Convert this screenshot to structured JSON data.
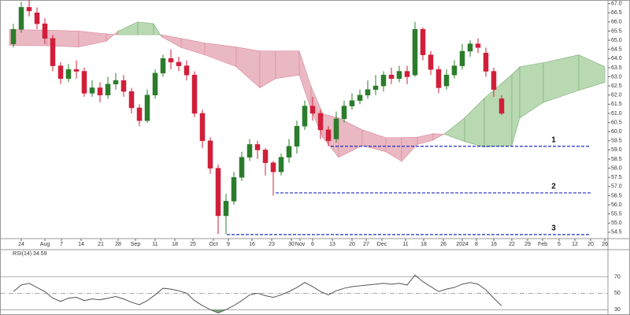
{
  "chart_data": {
    "type": "candlestick",
    "x": [
      0,
      1,
      2,
      3,
      4,
      5,
      6,
      7,
      8,
      9,
      10,
      11,
      12,
      13,
      14,
      15,
      16,
      17,
      18,
      19,
      20,
      21,
      22,
      23,
      24,
      25,
      26,
      27,
      28,
      29,
      30,
      31,
      32,
      33,
      34,
      35,
      36,
      37,
      38,
      39,
      40,
      41,
      42,
      43,
      44,
      45,
      46,
      47,
      48,
      49,
      50,
      51,
      52,
      53,
      54,
      55,
      56,
      57,
      58,
      59,
      60,
      61,
      62
    ],
    "open": [
      64.8,
      65.6,
      66.8,
      66.5,
      65.9,
      65.1,
      63.6,
      62.9,
      63.4,
      63.3,
      62.1,
      62.4,
      62.0,
      62.6,
      62.8,
      62.2,
      61.3,
      60.6,
      62.0,
      63.2,
      64.0,
      63.8,
      63.6,
      63.1,
      61.0,
      59.5,
      58.0,
      55.4,
      56.2,
      57.5,
      58.6,
      59.3,
      59.0,
      58.3,
      57.8,
      58.6,
      59.2,
      60.3,
      61.4,
      61.0,
      60.1,
      59.6,
      60.7,
      61.4,
      61.7,
      62.0,
      62.3,
      62.5,
      63.1,
      62.9,
      63.3,
      63.1,
      65.6,
      64.2,
      63.4,
      62.5,
      63.1,
      63.6,
      64.4,
      64.8,
      64.3,
      63.3,
      61.8
    ],
    "high": [
      65.9,
      67.1,
      67.2,
      66.8,
      66.2,
      65.3,
      63.8,
      63.7,
      63.9,
      63.5,
      62.8,
      62.7,
      63.0,
      63.2,
      63.1,
      62.4,
      61.5,
      62.3,
      63.4,
      64.2,
      64.5,
      64.1,
      63.9,
      63.3,
      61.2,
      59.7,
      58.2,
      56.6,
      57.8,
      58.9,
      59.6,
      59.5,
      59.1,
      58.4,
      58.8,
      59.6,
      60.6,
      61.7,
      61.9,
      61.2,
      60.3,
      61.1,
      61.7,
      62.1,
      62.3,
      62.8,
      63.1,
      63.3,
      63.5,
      63.6,
      63.6,
      66.0,
      65.7,
      64.4,
      63.6,
      63.4,
      63.9,
      64.8,
      65.0,
      65.1,
      64.6,
      63.5,
      62.0
    ],
    "low": [
      64.6,
      65.4,
      66.3,
      65.6,
      64.8,
      63.3,
      62.6,
      62.7,
      62.9,
      61.9,
      61.9,
      61.6,
      61.8,
      62.3,
      61.9,
      61.0,
      60.3,
      60.5,
      61.8,
      63.0,
      63.4,
      63.3,
      62.8,
      60.8,
      59.1,
      57.7,
      54.4,
      54.4,
      56.0,
      57.3,
      58.4,
      58.5,
      57.6,
      56.5,
      57.6,
      58.3,
      58.8,
      60.1,
      60.6,
      59.6,
      59.2,
      59.4,
      60.5,
      61.2,
      61.5,
      61.8,
      62.0,
      62.2,
      62.6,
      62.7,
      62.6,
      63.0,
      63.9,
      63.1,
      62.1,
      62.3,
      62.9,
      63.4,
      64.1,
      64.3,
      63.0,
      61.9,
      60.9
    ],
    "close": [
      65.6,
      66.8,
      66.6,
      65.9,
      65.1,
      63.6,
      62.9,
      63.4,
      63.3,
      62.1,
      62.4,
      62.0,
      62.6,
      62.8,
      62.2,
      61.3,
      60.6,
      62.0,
      63.2,
      64.0,
      63.8,
      63.6,
      63.1,
      61.0,
      59.5,
      58.0,
      55.4,
      56.2,
      57.5,
      58.6,
      59.3,
      59.0,
      58.3,
      57.8,
      58.6,
      59.2,
      60.3,
      61.4,
      61.0,
      60.1,
      59.5,
      60.7,
      61.4,
      61.7,
      62.0,
      62.3,
      62.5,
      63.1,
      62.9,
      63.3,
      63.0,
      65.6,
      64.2,
      63.4,
      62.4,
      63.1,
      63.6,
      64.4,
      64.8,
      64.6,
      63.3,
      62.3,
      61.0
    ],
    "up_color": "#2b7d2b",
    "down_color": "#d11f3a",
    "xlim": [
      -0.5,
      75.5
    ],
    "xticks": [
      {
        "value": 1.0,
        "label": "24"
      },
      {
        "value": 4.0,
        "label": "Aug"
      },
      {
        "value": 6.1,
        "label": "7"
      },
      {
        "value": 8.6,
        "label": "14"
      },
      {
        "value": 11.1,
        "label": "21"
      },
      {
        "value": 13.3,
        "label": "28"
      },
      {
        "value": 15.5,
        "label": "Sep"
      },
      {
        "value": 18.0,
        "label": "11"
      },
      {
        "value": 20.5,
        "label": "18"
      },
      {
        "value": 22.8,
        "label": "25"
      },
      {
        "value": 25.4,
        "label": "Oct"
      },
      {
        "value": 27.3,
        "label": "9"
      },
      {
        "value": 30.3,
        "label": "16"
      },
      {
        "value": 32.8,
        "label": "23"
      },
      {
        "value": 35.3,
        "label": "30"
      },
      {
        "value": 36.4,
        "label": "Nov"
      },
      {
        "value": 38.0,
        "label": "6"
      },
      {
        "value": 40.5,
        "label": "13"
      },
      {
        "value": 43.0,
        "label": "20"
      },
      {
        "value": 44.8,
        "label": "27"
      },
      {
        "value": 46.8,
        "label": "Dec"
      },
      {
        "value": 49.8,
        "label": "11"
      },
      {
        "value": 52.1,
        "label": "18"
      },
      {
        "value": 54.6,
        "label": "26"
      },
      {
        "value": 57.0,
        "label": "2024"
      },
      {
        "value": 58.8,
        "label": "8"
      },
      {
        "value": 61.0,
        "label": "16"
      },
      {
        "value": 63.3,
        "label": "22"
      },
      {
        "value": 65.3,
        "label": "29"
      },
      {
        "value": 67.2,
        "label": "Feb"
      },
      {
        "value": 69.3,
        "label": "5"
      },
      {
        "value": 71.3,
        "label": "12"
      },
      {
        "value": 73.3,
        "label": "20"
      },
      {
        "value": 75.1,
        "label": "26"
      }
    ],
    "ylim": [
      54.15,
      67.2
    ],
    "yticks": [
      54.5,
      {
        "value": 55,
        "label": "55.0"
      },
      55.5,
      {
        "value": 56,
        "label": "56.0"
      },
      56.5,
      {
        "value": 57,
        "label": "57.0"
      },
      57.5,
      {
        "value": 58,
        "label": "58.0"
      },
      58.5,
      {
        "value": 59,
        "label": "59.0"
      },
      59.5,
      {
        "value": 60,
        "label": "60.0"
      },
      60.5,
      {
        "value": 61,
        "label": "61.0"
      },
      61.5,
      {
        "value": 62,
        "label": "62.0"
      },
      62.5,
      {
        "value": 63,
        "label": "63.0"
      },
      63.5,
      {
        "value": 64,
        "label": "64.0"
      },
      64.5,
      {
        "value": 65,
        "label": "65.0"
      },
      65.5,
      {
        "value": 66,
        "label": "66.0"
      },
      66.5,
      {
        "value": 67,
        "label": "67.0"
      }
    ],
    "cloud": {
      "x": [
        -0.5,
        4.3,
        8.3,
        11.8,
        13.3,
        15.8,
        17.8,
        18.8,
        21.3,
        24.3,
        28.3,
        31.3,
        33.3,
        36.3,
        37.8,
        39.3,
        41.3,
        44.3,
        47.3,
        49.3,
        51.3,
        53.3,
        54.8,
        57.3,
        59.8,
        63.3,
        64.3,
        67.3,
        71.8,
        75.1
      ],
      "span_a": [
        64.72,
        64.7,
        64.63,
        64.95,
        65.5,
        66.0,
        65.9,
        65.2,
        64.6,
        64.2,
        63.55,
        62.4,
        62.9,
        63.1,
        61.2,
        59.67,
        58.6,
        59.24,
        58.9,
        58.38,
        59.3,
        59.54,
        59.9,
        60.75,
        61.83,
        63.12,
        63.55,
        63.77,
        64.2,
        63.55
      ],
      "span_b": [
        65.58,
        65.55,
        65.5,
        65.35,
        65.3,
        65.3,
        65.3,
        65.3,
        65.1,
        64.85,
        64.63,
        64.41,
        64.41,
        64.41,
        62.47,
        60.97,
        60.75,
        60.1,
        59.67,
        59.67,
        59.7,
        59.89,
        59.85,
        59.46,
        59.16,
        59.24,
        60.75,
        61.6,
        62.26,
        62.7
      ],
      "up_color": "#b9d9b3",
      "down_color": "#eab8c3",
      "up_edge": "#7cae74",
      "down_edge": "#d9869a"
    },
    "levels": [
      {
        "label": "1",
        "value": 59.2,
        "start": 40.3,
        "end": 73.3
      },
      {
        "label": "2",
        "value": 56.65,
        "start": 33.3,
        "end": 73.3
      },
      {
        "label": "3",
        "value": 54.37,
        "start": 27.1,
        "end": 73.3
      }
    ],
    "level_color": "#1f2fbf",
    "rsi": {
      "title": "RSI(14) 34.59",
      "values": [
        52,
        60,
        62,
        57,
        52,
        44,
        40,
        44,
        45,
        41,
        43,
        42,
        44,
        46,
        43,
        39,
        36,
        41,
        48,
        56,
        55,
        53,
        50,
        41,
        35,
        30,
        26,
        30,
        35,
        41,
        48,
        50,
        47,
        45,
        48,
        52,
        57,
        63,
        58,
        52,
        48,
        53,
        56,
        58,
        59,
        60,
        61,
        62,
        61,
        62,
        60,
        72,
        64,
        58,
        52,
        55,
        57,
        61,
        63,
        61,
        54,
        44,
        34.59
      ],
      "ylim": [
        23.5,
        103
      ],
      "yticks": [
        30,
        50,
        70
      ],
      "color": "#555555",
      "oversold_color": "#7fa87a"
    }
  }
}
